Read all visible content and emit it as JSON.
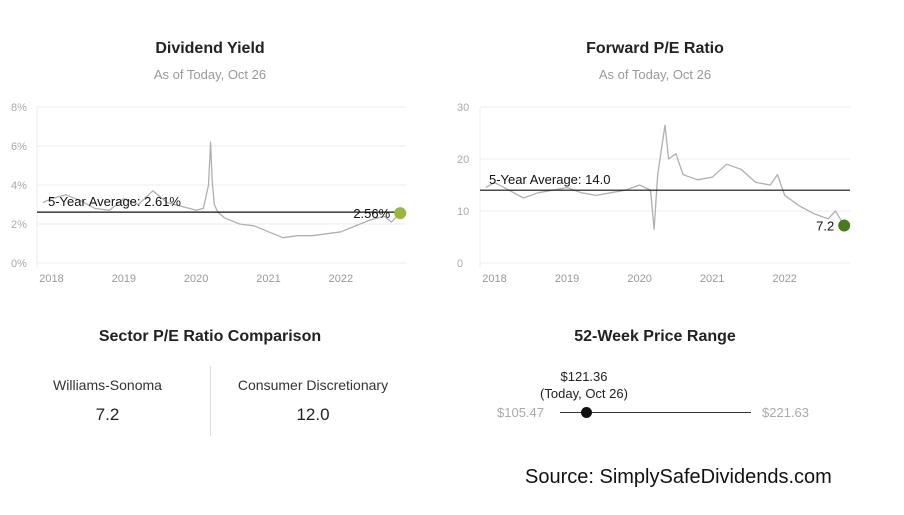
{
  "panels": {
    "dividend_yield": {
      "title": "Dividend Yield",
      "subtitle": "As of Today, Oct 26"
    },
    "forward_pe": {
      "title": "Forward P/E Ratio",
      "subtitle": "As of Today, Oct 26"
    }
  },
  "chart_data": [
    {
      "type": "line",
      "title": "Dividend Yield",
      "subtitle": "As of Today, Oct 26",
      "ylim": [
        0,
        8
      ],
      "y_ticks": [
        "0%",
        "2%",
        "4%",
        "6%",
        "8%"
      ],
      "x_ticks": [
        "2018",
        "2019",
        "2020",
        "2021",
        "2022"
      ],
      "grid": true,
      "average": {
        "label": "5-Year Average: 2.61%",
        "value": 2.61
      },
      "current": {
        "label": "2.56%",
        "value": 2.56,
        "color": "#9ab83a"
      },
      "series": [
        {
          "color": "#b0b0b0",
          "x": [
            2017.88,
            2018.0,
            2018.2,
            2018.4,
            2018.6,
            2018.8,
            2019.0,
            2019.2,
            2019.4,
            2019.6,
            2019.8,
            2020.0,
            2020.1,
            2020.17,
            2020.2,
            2020.22,
            2020.25,
            2020.3,
            2020.4,
            2020.6,
            2020.8,
            2021.0,
            2021.2,
            2021.4,
            2021.6,
            2021.8,
            2022.0,
            2022.2,
            2022.4,
            2022.6,
            2022.7,
            2022.82
          ],
          "values": [
            3.1,
            3.3,
            3.5,
            3.2,
            2.8,
            2.7,
            3.3,
            3.0,
            3.7,
            3.1,
            2.9,
            2.7,
            2.8,
            4.0,
            6.2,
            4.3,
            3.0,
            2.6,
            2.3,
            2.0,
            1.9,
            1.6,
            1.3,
            1.4,
            1.4,
            1.5,
            1.6,
            1.9,
            2.2,
            2.4,
            2.1,
            2.56
          ]
        }
      ]
    },
    {
      "type": "line",
      "title": "Forward P/E Ratio",
      "subtitle": "As of Today, Oct 26",
      "ylim": [
        0,
        30
      ],
      "y_ticks": [
        "0",
        "10",
        "20",
        "30"
      ],
      "x_ticks": [
        "2018",
        "2019",
        "2020",
        "2021",
        "2022"
      ],
      "grid": true,
      "average": {
        "label": "5-Year Average: 14.0",
        "value": 14.0
      },
      "current": {
        "label": "7.2",
        "value": 7.2,
        "color": "#4a7a1e"
      },
      "series": [
        {
          "color": "#b0b0b0",
          "x": [
            2017.88,
            2018.0,
            2018.2,
            2018.4,
            2018.6,
            2018.8,
            2019.0,
            2019.2,
            2019.4,
            2019.6,
            2019.8,
            2020.0,
            2020.15,
            2020.2,
            2020.25,
            2020.35,
            2020.4,
            2020.5,
            2020.6,
            2020.8,
            2021.0,
            2021.2,
            2021.4,
            2021.6,
            2021.8,
            2021.9,
            2022.0,
            2022.2,
            2022.4,
            2022.6,
            2022.7,
            2022.82
          ],
          "values": [
            14.5,
            15.5,
            14.0,
            12.5,
            13.5,
            14.0,
            14.5,
            13.5,
            13.0,
            13.5,
            14.0,
            15.0,
            14.0,
            6.5,
            17.0,
            26.5,
            20.0,
            21.0,
            17.0,
            16.0,
            16.5,
            19.0,
            18.0,
            15.5,
            15.0,
            17.0,
            13.0,
            11.0,
            9.5,
            8.5,
            10.0,
            7.2
          ]
        }
      ]
    }
  ],
  "sector": {
    "title": "Sector P/E Ratio Comparison",
    "company_name": "Williams-Sonoma",
    "company_value": "7.2",
    "sector_name": "Consumer Discretionary",
    "sector_value": "12.0"
  },
  "price_range": {
    "title": "52-Week Price Range",
    "current_price": "$121.36",
    "current_date": "(Today, Oct 26)",
    "low": "$105.47",
    "high": "$221.63",
    "current_fraction": 0.137
  },
  "source": "Source: SimplySafeDividends.com"
}
